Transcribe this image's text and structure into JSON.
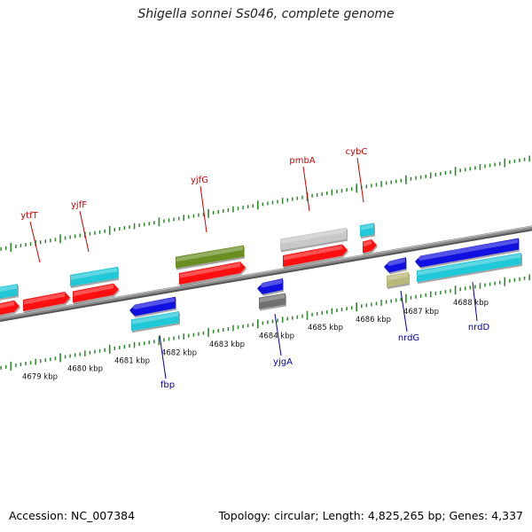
{
  "title": "Shigella sonnei Ss046, complete genome",
  "footer": {
    "accession": "Accession: NC_007384",
    "summary": "Topology: circular; Length: 4,825,265 bp; Genes: 4,337"
  },
  "colors": {
    "backbone": "#8a8a8a",
    "tick": "#2a8a2a",
    "top_label": "#cc0000",
    "bottom_label": "#0000aa",
    "red": "#ff1010",
    "cyan": "#20c8d8",
    "blue": "#1010e0",
    "olive": "#6b8e23",
    "gray": "#c8c8c8",
    "darkgray": "#707070",
    "khaki": "#b8b878"
  },
  "scale": {
    "unit": "kbp",
    "labels": [
      "4679 kbp",
      "4680 kbp",
      "4681 kbp",
      "4682 kbp",
      "4683 kbp",
      "4684 kbp",
      "4685 kbp",
      "4686 kbp",
      "4687 kbp",
      "4688 kbp"
    ]
  },
  "gene_labels_top": [
    "ytfT",
    "yjfF",
    "yjfG",
    "pmbA",
    "cybC"
  ],
  "gene_labels_bottom": [
    "fbp",
    "yjgA",
    "nrdG",
    "nrdD"
  ],
  "features": [
    {
      "lane": 1,
      "color": "red",
      "dir": "fwd"
    },
    {
      "lane": 1,
      "color": "red",
      "dir": "fwd"
    },
    {
      "lane": 1,
      "color": "red",
      "dir": "fwd"
    },
    {
      "lane": 1,
      "color": "red",
      "dir": "fwd"
    },
    {
      "lane": 1,
      "color": "red",
      "dir": "fwd"
    },
    {
      "lane": 1,
      "color": "red",
      "dir": "fwd"
    },
    {
      "lane": 1,
      "color": "cyan",
      "dir": "none"
    },
    {
      "lane": 2,
      "color": "cyan",
      "dir": "none"
    },
    {
      "lane": 2,
      "color": "cyan",
      "dir": "none"
    },
    {
      "lane": 2,
      "color": "olive",
      "dir": "none"
    },
    {
      "lane": 2,
      "color": "gray",
      "dir": "none"
    },
    {
      "lane": 2,
      "color": "cyan",
      "dir": "none"
    },
    {
      "lane": -1,
      "color": "blue",
      "dir": "rev"
    },
    {
      "lane": -1,
      "color": "blue",
      "dir": "rev"
    },
    {
      "lane": -1,
      "color": "blue",
      "dir": "rev"
    },
    {
      "lane": -1,
      "color": "blue",
      "dir": "rev"
    },
    {
      "lane": -2,
      "color": "cyan",
      "dir": "none"
    },
    {
      "lane": -2,
      "color": "darkgray",
      "dir": "none"
    },
    {
      "lane": -2,
      "color": "khaki",
      "dir": "none"
    }
  ]
}
